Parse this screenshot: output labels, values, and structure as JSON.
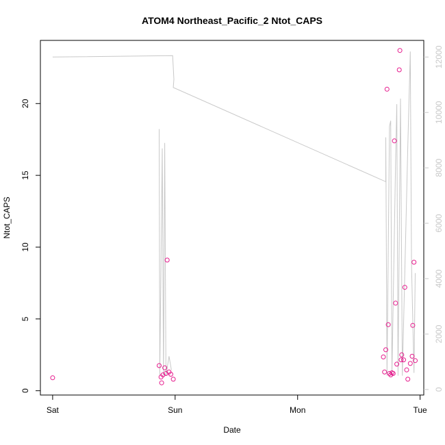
{
  "chart_data": {
    "type": "scatter",
    "title": "ATOM4 Northeast_Pacific_2 Ntot_CAPS",
    "xlabel": "Date",
    "ylabel": "Ntot_CAPS",
    "x_axis": {
      "ticks": [
        0,
        1,
        2,
        3
      ],
      "tick_labels": [
        "Sat",
        "Sun",
        "Mon",
        "Tue"
      ],
      "range": [
        -0.1,
        3.03
      ]
    },
    "y_axis_left": {
      "ticks": [
        0,
        5,
        10,
        15,
        20
      ],
      "tick_labels": [
        "0",
        "5",
        "10",
        "15",
        "20"
      ],
      "range": [
        -0.3,
        24.4
      ]
    },
    "y_axis_right": {
      "ticks": [
        0,
        2000,
        4000,
        6000,
        8000,
        10000,
        12000
      ],
      "tick_labels": [
        "0",
        "2000",
        "4000",
        "6000",
        "8000",
        "10000",
        "12000"
      ],
      "range": [
        -200,
        12600
      ],
      "color": "#c8c8c8"
    },
    "grid": false,
    "legend": "none",
    "series": [
      {
        "kind": "points",
        "axis": "left",
        "color": "#e6198c",
        "points": [
          [
            0.0,
            0.9
          ],
          [
            0.87,
            1.75
          ],
          [
            0.885,
            0.95
          ],
          [
            0.89,
            0.55
          ],
          [
            0.9,
            1.1
          ],
          [
            0.915,
            1.6
          ],
          [
            0.925,
            1.2
          ],
          [
            0.935,
            9.1
          ],
          [
            0.95,
            1.3
          ],
          [
            0.965,
            1.15
          ],
          [
            0.985,
            0.8
          ],
          [
            2.7,
            2.35
          ],
          [
            2.71,
            1.3
          ],
          [
            2.72,
            2.85
          ],
          [
            2.73,
            21.0
          ],
          [
            2.74,
            4.6
          ],
          [
            2.75,
            1.2
          ],
          [
            2.76,
            1.1
          ],
          [
            2.77,
            1.25
          ],
          [
            2.78,
            1.2
          ],
          [
            2.79,
            17.4
          ],
          [
            2.8,
            6.1
          ],
          [
            2.81,
            1.85
          ],
          [
            2.83,
            22.35
          ],
          [
            2.835,
            23.7
          ],
          [
            2.845,
            2.15
          ],
          [
            2.85,
            2.5
          ],
          [
            2.865,
            2.15
          ],
          [
            2.875,
            7.2
          ],
          [
            2.89,
            1.45
          ],
          [
            2.9,
            0.8
          ],
          [
            2.92,
            1.9
          ],
          [
            2.935,
            2.4
          ],
          [
            2.94,
            4.55
          ],
          [
            2.95,
            8.95
          ],
          [
            2.96,
            2.1
          ]
        ]
      },
      {
        "kind": "line",
        "axis": "right",
        "color": "#c8c8c8",
        "points": [
          [
            0.0,
            12000
          ],
          [
            0.98,
            12050
          ],
          [
            0.99,
            11200
          ],
          [
            0.985,
            10900
          ],
          [
            2.72,
            7500
          ],
          [
            2.72,
            9100
          ],
          [
            2.73,
            500
          ],
          [
            2.75,
            9500
          ],
          [
            2.76,
            9700
          ],
          [
            2.77,
            500
          ],
          [
            2.8,
            8200
          ],
          [
            2.81,
            10300
          ],
          [
            2.82,
            500
          ],
          [
            2.84,
            10500
          ],
          [
            2.855,
            500
          ],
          [
            2.9,
            8800
          ],
          [
            2.92,
            12200
          ],
          [
            2.93,
            4500
          ],
          [
            2.95,
            600
          ],
          [
            2.96,
            4200
          ]
        ]
      },
      {
        "kind": "line",
        "axis": "right",
        "color": "#c8c8c8",
        "points": [
          [
            0.87,
            9400
          ],
          [
            0.875,
            500
          ],
          [
            0.895,
            8700
          ],
          [
            0.905,
            500
          ],
          [
            0.915,
            8900
          ],
          [
            0.925,
            500
          ],
          [
            0.95,
            1200
          ],
          [
            0.97,
            700
          ]
        ]
      }
    ]
  }
}
